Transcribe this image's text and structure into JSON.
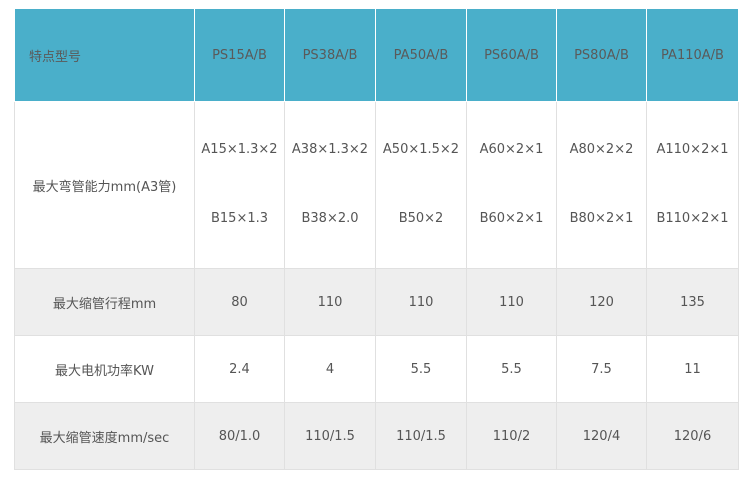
{
  "table": {
    "header": {
      "label": "特点型号",
      "models": [
        "PS15A/B",
        "PS38A/B",
        "PA50A/B",
        "PS60A/B",
        "PS80A/B",
        "PA110A/B"
      ]
    },
    "rows": [
      {
        "label": "最大弯管能力mm(A3管)",
        "values": [
          {
            "a": "A15×1.3×2",
            "b": "B15×1.3"
          },
          {
            "a": "A38×1.3×2",
            "b": "B38×2.0"
          },
          {
            "a": "A50×1.5×2",
            "b": "B50×2"
          },
          {
            "a": "A60×2×1",
            "b": "B60×2×1"
          },
          {
            "a": "A80×2×2",
            "b": "B80×2×1"
          },
          {
            "a": "A110×2×1",
            "b": "B110×2×1"
          }
        ]
      },
      {
        "label": "最大缩管行程mm",
        "values": [
          "80",
          "110",
          "110",
          "110",
          "120",
          "135"
        ]
      },
      {
        "label": "最大电机功率KW",
        "values": [
          "2.4",
          "4",
          "5.5",
          "5.5",
          "7.5",
          "11"
        ]
      },
      {
        "label": "最大缩管速度mm/sec",
        "values": [
          "80/1.0",
          "110/1.5",
          "110/1.5",
          "110/2",
          "120/4",
          "120/6"
        ]
      }
    ]
  },
  "colors": {
    "header_bg": "#4aafca",
    "alt_row_bg": "#eeeeee",
    "text": "#555555"
  }
}
